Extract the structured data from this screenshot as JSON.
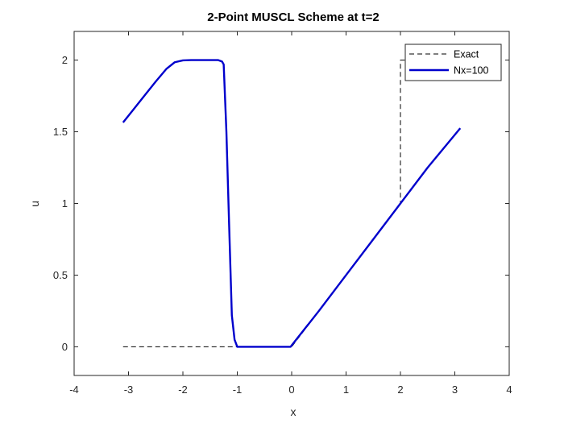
{
  "chart_data": {
    "type": "line",
    "title": "2-Point MUSCL Scheme at t=2",
    "xlabel": "x",
    "ylabel": "u",
    "xlim": [
      -4,
      4
    ],
    "ylim": [
      -0.2,
      2.2
    ],
    "xticks": [
      -4,
      -3,
      -2,
      -1,
      0,
      1,
      2,
      3,
      4
    ],
    "xtick_labels": [
      "-4",
      "-3",
      "-2",
      "-1",
      "0",
      "1",
      "2",
      "3",
      "4"
    ],
    "yticks": [
      0,
      0.5,
      1,
      1.5,
      2
    ],
    "ytick_labels": [
      "0",
      "0.5",
      "1",
      "1.5",
      "2"
    ],
    "grid": false,
    "legend_position": "top-right",
    "series": [
      {
        "name": "Exact",
        "color": "#000000",
        "style": "dashed",
        "x": [
          -3.1,
          -1.0,
          -1.0,
          0.0,
          2.0,
          2.0,
          3.1
        ],
        "y": [
          0.0,
          0.0,
          0.0,
          0.0,
          0.995,
          2.0,
          2.0
        ]
      },
      {
        "name": "Nx=100",
        "color": "#0000cc",
        "style": "solid",
        "x": [
          -3.1,
          -2.9,
          -2.7,
          -2.5,
          -2.3,
          -2.15,
          -2.0,
          -1.85,
          -1.7,
          -1.5,
          -1.35,
          -1.28,
          -1.25,
          -1.2,
          -1.15,
          -1.1,
          -1.05,
          -1.0,
          -0.5,
          -0.02,
          0.5,
          1.0,
          1.5,
          2.0,
          2.5,
          3.1
        ],
        "y": [
          1.565,
          1.66,
          1.755,
          1.85,
          1.94,
          1.985,
          1.998,
          2.0,
          2.0,
          2.0,
          2.0,
          1.99,
          1.97,
          1.5,
          0.85,
          0.22,
          0.05,
          0.0,
          0.0,
          0.0,
          0.25,
          0.5,
          0.75,
          1.0,
          1.25,
          1.525
        ]
      }
    ]
  }
}
